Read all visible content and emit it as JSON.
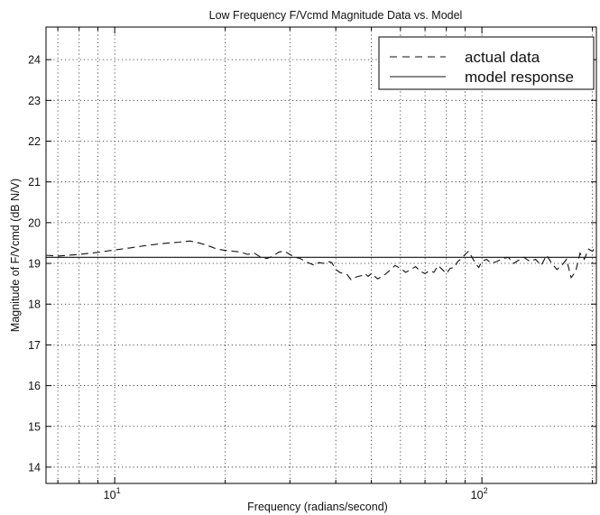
{
  "chart_data": {
    "type": "line",
    "title": "Low Frequency F/Vcmd Magnitude Data vs. Model",
    "xlabel": "Frequency (radians/second)",
    "ylabel": "Magnitude of F/Vcmd (dB N/V)",
    "xscale": "log",
    "xlim": [
      6.5,
      205
    ],
    "ylim": [
      13.6,
      24.8
    ],
    "grid": true,
    "legend_position": "top-right",
    "x_tick_labels": [
      {
        "value": 10,
        "base": "10",
        "exp": "1"
      },
      {
        "value": 100,
        "base": "10",
        "exp": "2"
      }
    ],
    "y_ticks": [
      14,
      15,
      16,
      17,
      18,
      19,
      20,
      21,
      22,
      23,
      24
    ],
    "series": [
      {
        "name": "actual data",
        "style": "dashed",
        "color": "#111111",
        "x": [
          6.5,
          7,
          8,
          9,
          10,
          11,
          12,
          13,
          14,
          15,
          16,
          17,
          18,
          19,
          20,
          21,
          22,
          23,
          24,
          25,
          26,
          27,
          28,
          29,
          30,
          31,
          32,
          33,
          34,
          35,
          36,
          37,
          38,
          39,
          40,
          41,
          42,
          43,
          44,
          45,
          46,
          47,
          48,
          49,
          50,
          52,
          54,
          56,
          58,
          60,
          62,
          64,
          66,
          68,
          70,
          72,
          74,
          76,
          78,
          80,
          82,
          84,
          86,
          88,
          90,
          92,
          94,
          96,
          98,
          100,
          103,
          106,
          110,
          114,
          118,
          122,
          126,
          130,
          135,
          140,
          145,
          150,
          155,
          160,
          165,
          170,
          175,
          180,
          185,
          190,
          195,
          200,
          205
        ],
        "y": [
          19.2,
          19.18,
          19.22,
          19.27,
          19.33,
          19.38,
          19.43,
          19.47,
          19.5,
          19.52,
          19.55,
          19.5,
          19.43,
          19.35,
          19.32,
          19.3,
          19.28,
          19.22,
          19.25,
          19.15,
          19.12,
          19.18,
          19.28,
          19.3,
          19.22,
          19.15,
          19.12,
          19.05,
          19.0,
          18.95,
          19.02,
          19.0,
          19.05,
          19.02,
          18.85,
          18.78,
          18.75,
          18.72,
          18.6,
          18.65,
          18.68,
          18.7,
          18.75,
          18.68,
          18.75,
          18.62,
          18.7,
          18.82,
          18.95,
          18.88,
          18.78,
          18.85,
          18.92,
          18.8,
          18.75,
          18.82,
          18.78,
          18.95,
          18.85,
          18.75,
          18.88,
          18.9,
          19.05,
          19.12,
          19.22,
          19.3,
          19.15,
          19.0,
          18.9,
          19.05,
          19.1,
          19.0,
          19.05,
          19.12,
          19.15,
          19.0,
          19.08,
          19.15,
          19.05,
          19.1,
          18.95,
          19.2,
          19.0,
          18.85,
          18.95,
          19.1,
          18.65,
          18.8,
          19.25,
          19.1,
          19.35,
          19.3,
          19.42
        ]
      },
      {
        "name": "model response",
        "style": "solid",
        "color": "#111111",
        "x": [
          6.5,
          205
        ],
        "y": [
          19.15,
          19.15
        ]
      }
    ]
  }
}
